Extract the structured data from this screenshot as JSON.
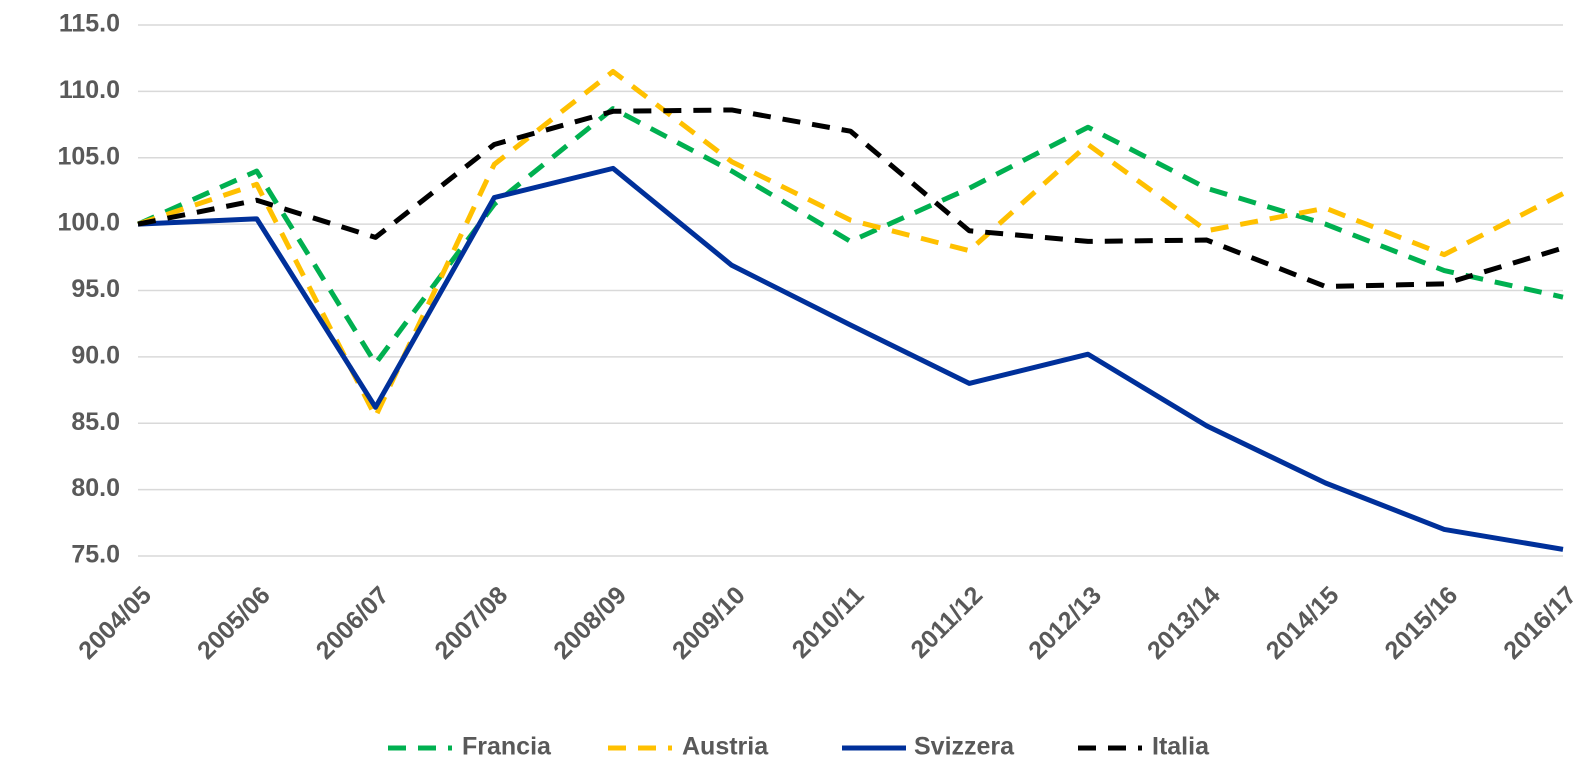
{
  "chart_data": {
    "type": "line",
    "categories": [
      "2004/05",
      "2005/06",
      "2006/07",
      "2007/08",
      "2008/09",
      "2009/10",
      "2010/11",
      "2011/12",
      "2012/13",
      "2013/14",
      "2014/15",
      "2015/16",
      "2016/17"
    ],
    "series": [
      {
        "name": "Francia",
        "color": "#00b050",
        "dashed": true,
        "values": [
          100,
          104,
          89.5,
          101.5,
          108.7,
          104,
          98.7,
          102.7,
          107.3,
          102.7,
          100,
          96.5,
          94.5
        ]
      },
      {
        "name": "Austria",
        "color": "#ffc000",
        "dashed": true,
        "values": [
          100,
          103,
          85.5,
          104.5,
          111.5,
          104.7,
          100.3,
          98,
          106,
          99.5,
          101.2,
          97.7,
          102.3
        ]
      },
      {
        "name": "Svizzera",
        "color": "#00309a",
        "dashed": false,
        "values": [
          100,
          100.4,
          86.2,
          102,
          104.2,
          96.9,
          92.4,
          88,
          90.2,
          84.8,
          80.5,
          77,
          75.5
        ]
      },
      {
        "name": "Italia",
        "color": "#000000",
        "dashed": true,
        "values": [
          100,
          101.8,
          99,
          106,
          108.5,
          108.6,
          107,
          99.5,
          98.7,
          98.8,
          95.3,
          95.5,
          98.2
        ]
      }
    ],
    "ylim": [
      75,
      115
    ],
    "yticks": [
      {
        "value": 75,
        "label": "75.0"
      },
      {
        "value": 80,
        "label": "80.0"
      },
      {
        "value": 85,
        "label": "85.0"
      },
      {
        "value": 90,
        "label": "90.0"
      },
      {
        "value": 95,
        "label": "95.0"
      },
      {
        "value": 100,
        "label": "100.0"
      },
      {
        "value": 105,
        "label": "105.0"
      },
      {
        "value": 110,
        "label": "110.0"
      },
      {
        "value": 115,
        "label": "115.0"
      }
    ],
    "grid": true,
    "legend": "bottom"
  }
}
